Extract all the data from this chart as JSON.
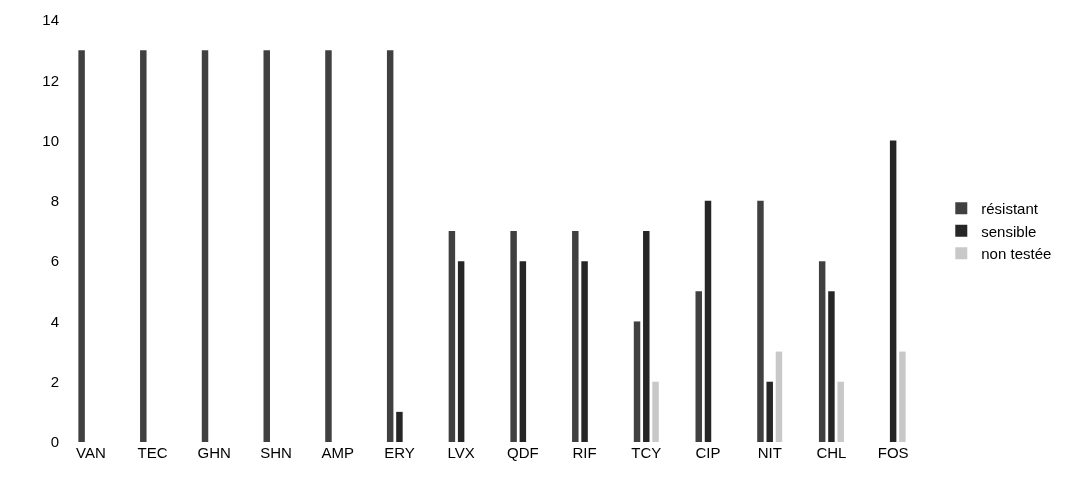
{
  "chart_data": {
    "type": "bar",
    "categories": [
      "VAN",
      "TEC",
      "GHN",
      "SHN",
      "AMP",
      "ERY",
      "LVX",
      "QDF",
      "RIF",
      "TCY",
      "CIP",
      "NIT",
      "CHL",
      "FOS"
    ],
    "series": [
      {
        "name": "résistant",
        "color": "#404040",
        "values": [
          13,
          13,
          13,
          13,
          13,
          13,
          7,
          7,
          7,
          4,
          5,
          8,
          6,
          0
        ]
      },
      {
        "name": "sensible",
        "color": "#262626",
        "values": [
          0,
          0,
          0,
          0,
          0,
          1,
          6,
          6,
          6,
          7,
          8,
          2,
          5,
          10
        ]
      },
      {
        "name": "non testée",
        "color": "#c8c8c8",
        "values": [
          0,
          0,
          0,
          0,
          0,
          0,
          0,
          0,
          0,
          2,
          0,
          3,
          2,
          3
        ]
      }
    ],
    "ylim": [
      0,
      14
    ],
    "yticks": [
      0,
      2,
      4,
      6,
      8,
      10,
      12,
      14
    ],
    "legend": "right"
  }
}
